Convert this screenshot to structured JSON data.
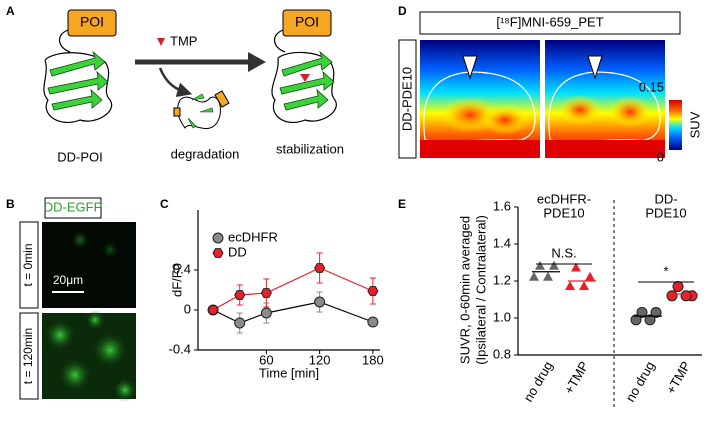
{
  "panel_labels": [
    "A",
    "B",
    "C",
    "D",
    "E"
  ],
  "panel_a": {
    "poi": [
      "POI",
      "POI"
    ],
    "drug": "TMP",
    "left_label": "DD-POI",
    "middle_label": "degradation",
    "right_label": "stabilization"
  },
  "panel_b": {
    "title": "DD-EGFP",
    "rows": [
      "t = 0min",
      "t = 120min"
    ],
    "scale_bar": "20μm"
  },
  "panel_d": {
    "title": "[¹⁸F]MNI-659_PET",
    "row_label": "DD-PDE10",
    "colorbar_label": "SUV",
    "clim": [
      0,
      0.15
    ],
    "cticks": [
      0.15,
      0
    ]
  },
  "chart_data": [
    {
      "type": "line",
      "xlabel": "Time [min]",
      "ylabel": "dF/F0",
      "x": [
        0,
        30,
        60,
        120,
        180
      ],
      "series": [
        {
          "name": "ecDHFR",
          "color": "#8a8a8a",
          "marker": "circle",
          "values": [
            0,
            -0.13,
            -0.03,
            0.08,
            -0.12
          ],
          "errors": [
            0,
            0.1,
            0.1,
            0.1,
            0.03
          ]
        },
        {
          "name": "DD",
          "color": "#e8202a",
          "marker": "hexagon",
          "values": [
            0,
            0.15,
            0.17,
            0.42,
            0.19
          ],
          "errors": [
            0,
            0.1,
            0.14,
            0.15,
            0.13
          ]
        }
      ],
      "xlim": [
        -17,
        188
      ],
      "xticks": [
        60,
        120,
        180
      ],
      "ylim": [
        -0.4,
        1.0
      ],
      "yticks": [
        -0.4,
        0,
        0.4
      ],
      "legend": "upper left"
    },
    {
      "type": "strip",
      "ylabel": [
        "SUVR, 0-60min averaged",
        "(Ipsilateral / Contralateral)"
      ],
      "groups": [
        [
          "ecDHFR-",
          "PDE10"
        ],
        [
          "DD-",
          "PDE10"
        ]
      ],
      "categories": [
        "no drug",
        "+TMP",
        "no drug",
        "+TMP"
      ],
      "series": [
        {
          "color": "#666666",
          "marker": "triangle",
          "values": [
            1.28,
            1.28,
            1.22,
            1.22
          ]
        },
        {
          "color": "#e8202a",
          "marker": "triangle",
          "values": [
            1.27,
            1.22,
            1.17,
            1.17
          ]
        },
        {
          "color": "#666666",
          "marker": "circle",
          "values": [
            1.03,
            1.03,
            0.99,
            0.99
          ]
        },
        {
          "color": "#e8202a",
          "marker": "circle",
          "values": [
            1.17,
            1.12,
            1.12,
            1.12
          ]
        }
      ],
      "means": [
        1.25,
        1.2,
        1.01,
        1.13
      ],
      "mean_colors": [
        "#000000",
        "#e8202a",
        "#000000",
        "#e8202a"
      ],
      "annotations": [
        "N.S.",
        "*"
      ],
      "ylim": [
        0.8,
        1.6
      ],
      "yticks": [
        0.8,
        {
          "value": 1,
          "label": "1.0"
        },
        1.2,
        1.4,
        1.6
      ]
    }
  ]
}
